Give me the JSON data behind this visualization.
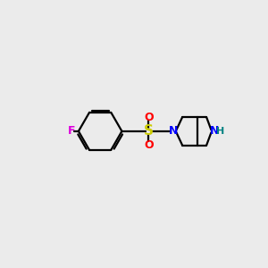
{
  "background_color": "#ebebeb",
  "bond_color": "#000000",
  "F_color": "#dd00dd",
  "S_color": "#cccc00",
  "O_color": "#ff0000",
  "N_color": "#0000ff",
  "NH_color": "#008080",
  "line_width": 1.6,
  "figsize": [
    3.0,
    3.0
  ],
  "dpi": 100,
  "xlim": [
    0,
    10
  ],
  "ylim": [
    0,
    10
  ]
}
